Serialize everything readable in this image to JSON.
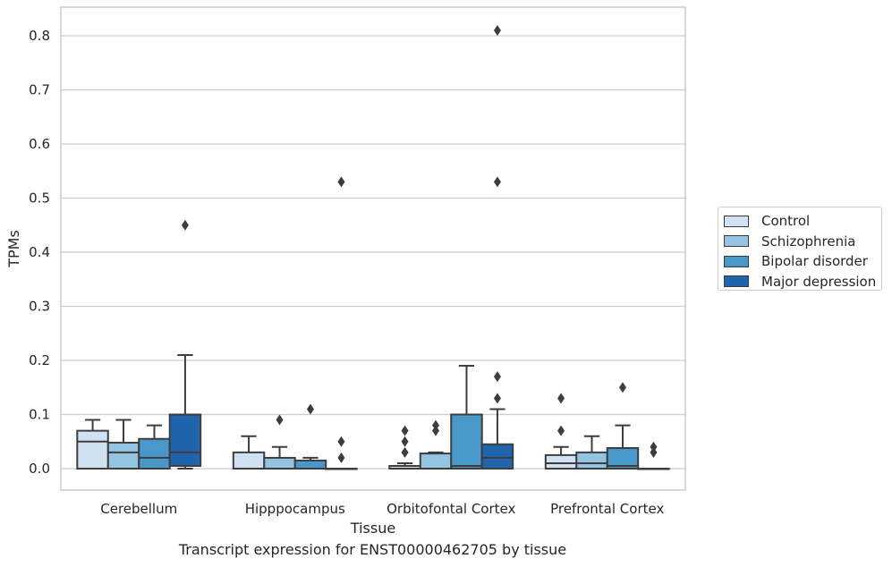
{
  "chart_data": {
    "type": "box",
    "xlabel": "Tissue",
    "ylabel": "TPMs",
    "caption": "Transcript expression for ENST00000462705 by tissue",
    "ylim": [
      -0.04,
      0.85
    ],
    "yticks": [
      "0.0",
      "0.1",
      "0.2",
      "0.3",
      "0.4",
      "0.5",
      "0.6",
      "0.7",
      "0.8"
    ],
    "grid": true,
    "legend_position": "right",
    "categories": [
      "Cerebellum",
      "Hipppocampus",
      "Orbitofontal Cortex",
      "Prefrontal Cortex"
    ],
    "series": [
      {
        "name": "Control",
        "color": "#d0e1f2",
        "boxes": [
          {
            "q1": 0.0,
            "median": 0.05,
            "q3": 0.07,
            "whislo": 0.0,
            "whishi": 0.09,
            "fliers": []
          },
          {
            "q1": 0.0,
            "median": 0.0,
            "q3": 0.03,
            "whislo": 0.0,
            "whishi": 0.06,
            "fliers": []
          },
          {
            "q1": 0.0,
            "median": 0.0,
            "q3": 0.005,
            "whislo": 0.0,
            "whishi": 0.01,
            "fliers": [
              0.03,
              0.05,
              0.07
            ]
          },
          {
            "q1": 0.0,
            "median": 0.01,
            "q3": 0.025,
            "whislo": 0.0,
            "whishi": 0.04,
            "fliers": [
              0.07,
              0.13
            ]
          }
        ]
      },
      {
        "name": "Schizophrenia",
        "color": "#94c4df",
        "boxes": [
          {
            "q1": 0.0,
            "median": 0.03,
            "q3": 0.048,
            "whislo": 0.0,
            "whishi": 0.09,
            "fliers": []
          },
          {
            "q1": 0.0,
            "median": 0.0,
            "q3": 0.02,
            "whislo": 0.0,
            "whishi": 0.04,
            "fliers": [
              0.09
            ]
          },
          {
            "q1": 0.0,
            "median": 0.0,
            "q3": 0.028,
            "whislo": 0.0,
            "whishi": 0.03,
            "fliers": [
              0.07,
              0.08
            ]
          },
          {
            "q1": 0.0,
            "median": 0.01,
            "q3": 0.03,
            "whislo": 0.0,
            "whishi": 0.06,
            "fliers": []
          }
        ]
      },
      {
        "name": "Bipolar disorder",
        "color": "#4a98c9",
        "boxes": [
          {
            "q1": 0.0,
            "median": 0.02,
            "q3": 0.055,
            "whislo": 0.0,
            "whishi": 0.08,
            "fliers": []
          },
          {
            "q1": 0.0,
            "median": 0.0,
            "q3": 0.015,
            "whislo": 0.0,
            "whishi": 0.02,
            "fliers": [
              0.11
            ]
          },
          {
            "q1": 0.0,
            "median": 0.005,
            "q3": 0.1,
            "whislo": 0.0,
            "whishi": 0.19,
            "fliers": []
          },
          {
            "q1": 0.0,
            "median": 0.005,
            "q3": 0.038,
            "whislo": 0.0,
            "whishi": 0.08,
            "fliers": [
              0.15
            ]
          }
        ]
      },
      {
        "name": "Major depression",
        "color": "#2064ae",
        "boxes": [
          {
            "q1": 0.005,
            "median": 0.03,
            "q3": 0.1,
            "whislo": 0.0,
            "whishi": 0.21,
            "fliers": [
              0.45
            ]
          },
          {
            "q1": 0.0,
            "median": 0.0,
            "q3": 0.0,
            "whislo": 0.0,
            "whishi": 0.0,
            "fliers": [
              0.02,
              0.05,
              0.53
            ]
          },
          {
            "q1": 0.0,
            "median": 0.02,
            "q3": 0.045,
            "whislo": 0.0,
            "whishi": 0.11,
            "fliers": [
              0.13,
              0.17,
              0.53,
              0.81
            ]
          },
          {
            "q1": 0.0,
            "median": 0.0,
            "q3": 0.0,
            "whislo": 0.0,
            "whishi": 0.0,
            "fliers": [
              0.03,
              0.04
            ]
          }
        ]
      }
    ]
  }
}
